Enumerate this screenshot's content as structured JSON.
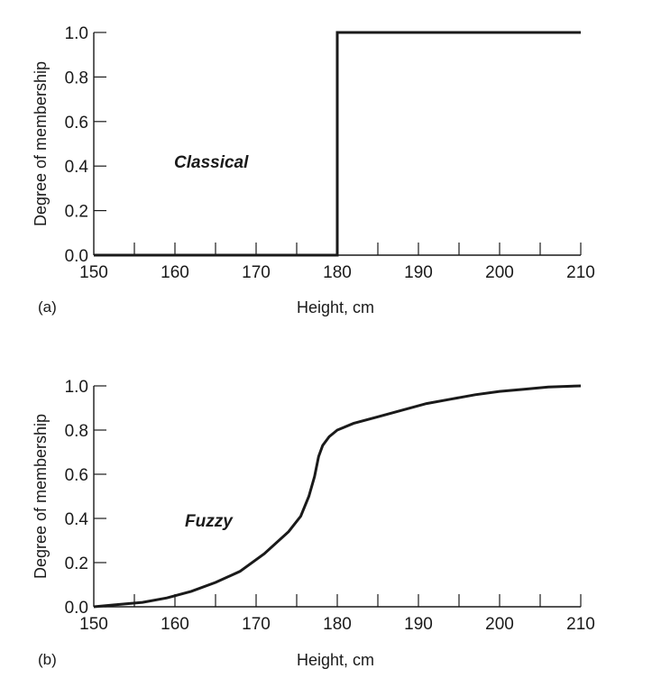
{
  "chart_data": [
    {
      "type": "line",
      "panel_label": "(a)",
      "annotation": "Classical",
      "xlabel": "Height, cm",
      "ylabel": "Degree of membership",
      "xlim": [
        150,
        210
      ],
      "ylim": [
        0.0,
        1.0
      ],
      "x_tick_labels": [
        "150",
        "160",
        "170",
        "180",
        "190",
        "200",
        "210"
      ],
      "y_tick_labels": [
        "0.0",
        "0.2",
        "0.4",
        "0.6",
        "0.8",
        "1.0"
      ],
      "x_minor_step": 5,
      "grid": false,
      "series": [
        {
          "x": [
            150,
            180,
            180,
            210
          ],
          "y": [
            0.0,
            0.0,
            1.0,
            1.0
          ]
        }
      ]
    },
    {
      "type": "line",
      "panel_label": "(b)",
      "annotation": "Fuzzy",
      "xlabel": "Height, cm",
      "ylabel": "Degree of membership",
      "xlim": [
        150,
        210
      ],
      "ylim": [
        0.0,
        1.0
      ],
      "x_tick_labels": [
        "150",
        "160",
        "170",
        "180",
        "190",
        "200",
        "210"
      ],
      "y_tick_labels": [
        "0.0",
        "0.2",
        "0.4",
        "0.6",
        "0.8",
        "1.0"
      ],
      "x_minor_step": 5,
      "grid": false,
      "series": [
        {
          "x": [
            150,
            153,
            156,
            159,
            162,
            165,
            168,
            171,
            174,
            175.5,
            176.5,
            177.2,
            177.7,
            178.2,
            179,
            180,
            182,
            185,
            188,
            191,
            194,
            197,
            200,
            203,
            206,
            210
          ],
          "y": [
            0.0,
            0.01,
            0.02,
            0.04,
            0.07,
            0.11,
            0.16,
            0.24,
            0.34,
            0.41,
            0.5,
            0.59,
            0.68,
            0.73,
            0.77,
            0.8,
            0.83,
            0.86,
            0.89,
            0.92,
            0.94,
            0.96,
            0.975,
            0.985,
            0.995,
            1.0
          ]
        }
      ]
    }
  ]
}
